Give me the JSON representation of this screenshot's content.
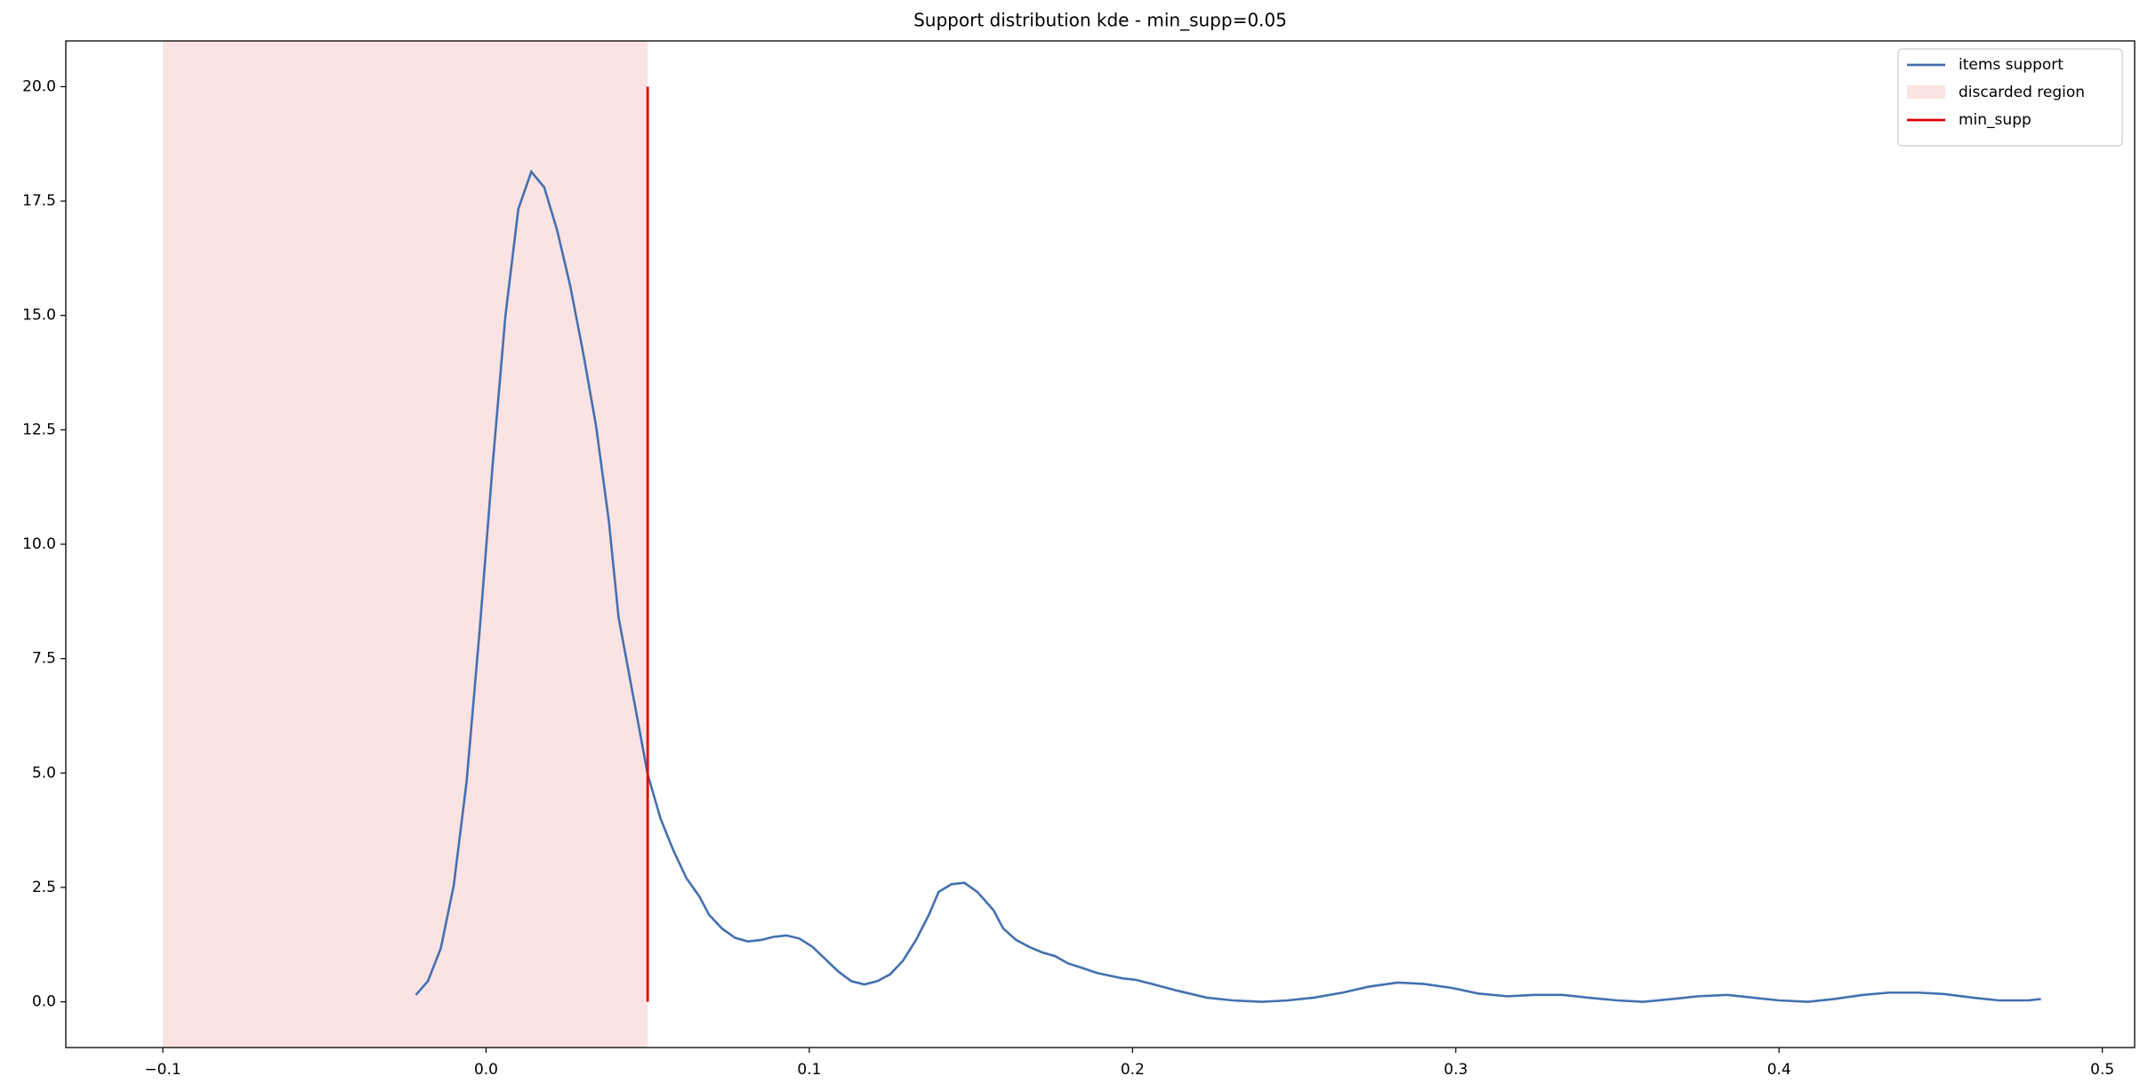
{
  "chart_data": {
    "type": "line",
    "title": "Support distribution kde - min_supp=0.05",
    "xlim": [
      -0.13,
      0.51
    ],
    "ylim": [
      -1.0,
      21.0
    ],
    "xticks": [
      {
        "value": -0.1,
        "label": "−0.1"
      },
      {
        "value": 0,
        "label": "0.0"
      },
      0.1,
      0.2,
      0.3,
      0.4,
      0.5
    ],
    "yticks": [
      {
        "value": 0,
        "label": "0.0"
      },
      2.5,
      {
        "value": 5,
        "label": "5.0"
      },
      7.5,
      {
        "value": 10,
        "label": "10.0"
      },
      12.5,
      {
        "value": 15,
        "label": "15.0"
      },
      17.5,
      {
        "value": 20,
        "label": "20.0"
      }
    ],
    "legend": "upper right",
    "series": [
      {
        "name": "items support",
        "color": "#4470b0",
        "x": [
          -0.0217,
          -0.018,
          -0.014,
          -0.01,
          -0.006,
          -0.002,
          0.002,
          0.006,
          0.01,
          0.014,
          0.018,
          0.022,
          0.026,
          0.03,
          0.034,
          0.038,
          0.041,
          0.046,
          0.05,
          0.054,
          0.058,
          0.062,
          0.066,
          0.069,
          0.073,
          0.077,
          0.081,
          0.085,
          0.089,
          0.093,
          0.097,
          0.101,
          0.105,
          0.109,
          0.113,
          0.117,
          0.121,
          0.125,
          0.129,
          0.133,
          0.137,
          0.14,
          0.144,
          0.148,
          0.152,
          0.157,
          0.16,
          0.164,
          0.168,
          0.172,
          0.176,
          0.18,
          0.184,
          0.189,
          0.193,
          0.197,
          0.201,
          0.206,
          0.214,
          0.223,
          0.231,
          0.24,
          0.248,
          0.256,
          0.265,
          0.273,
          0.282,
          0.29,
          0.299,
          0.307,
          0.316,
          0.324,
          0.333,
          0.341,
          0.35,
          0.358,
          0.367,
          0.375,
          0.384,
          0.392,
          0.4,
          0.409,
          0.417,
          0.426,
          0.434,
          0.443,
          0.451,
          0.46,
          0.468,
          0.477,
          0.481
        ],
        "values": [
          0.15,
          0.45,
          1.17,
          2.54,
          4.82,
          8.1,
          11.7,
          15.0,
          17.33,
          18.14,
          17.8,
          16.86,
          15.66,
          14.2,
          12.6,
          10.5,
          8.4,
          6.5,
          4.97,
          4.0,
          3.3,
          2.7,
          2.3,
          1.9,
          1.6,
          1.4,
          1.32,
          1.35,
          1.42,
          1.45,
          1.38,
          1.2,
          0.93,
          0.66,
          0.45,
          0.38,
          0.45,
          0.6,
          0.9,
          1.35,
          1.9,
          2.4,
          2.57,
          2.6,
          2.4,
          2.0,
          1.6,
          1.35,
          1.2,
          1.08,
          1.0,
          0.84,
          0.75,
          0.63,
          0.57,
          0.51,
          0.48,
          0.39,
          0.24,
          0.09,
          0.03,
          0.0,
          0.03,
          0.09,
          0.2,
          0.33,
          0.42,
          0.39,
          0.3,
          0.18,
          0.12,
          0.15,
          0.15,
          0.09,
          0.03,
          0.0,
          0.06,
          0.12,
          0.15,
          0.09,
          0.03,
          0.0,
          0.06,
          0.15,
          0.2,
          0.2,
          0.17,
          0.09,
          0.03,
          0.03,
          0.06
        ]
      }
    ],
    "spans": [
      {
        "name": "discarded region",
        "color": "#fbe3e3",
        "x": [
          -0.1,
          0.05
        ]
      }
    ],
    "vlines": [
      {
        "name": "min_supp",
        "color": "#e00000",
        "x": 0.05,
        "y": [
          0,
          20
        ]
      }
    ]
  }
}
